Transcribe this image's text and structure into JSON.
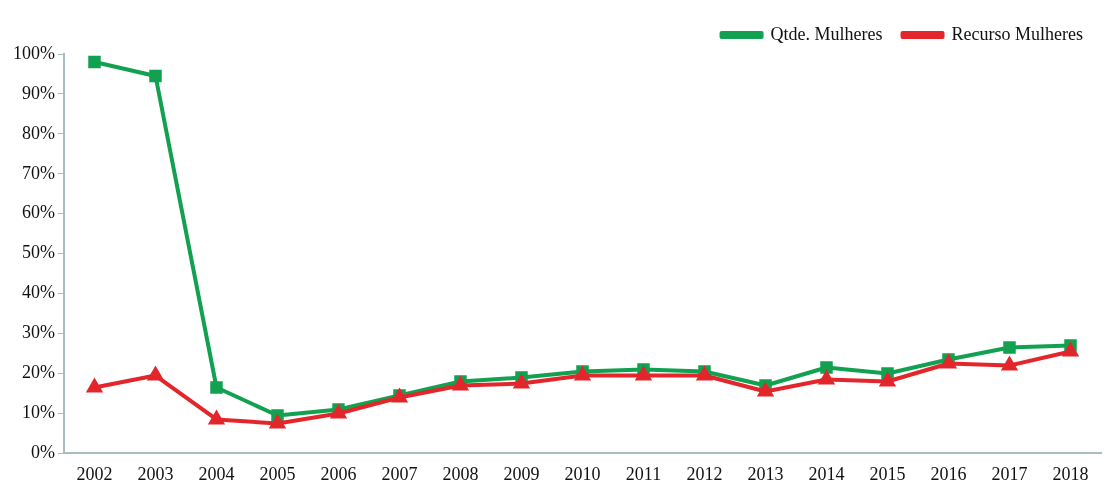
{
  "chart_data": {
    "type": "line",
    "categories": [
      "2002",
      "2003",
      "2004",
      "2005",
      "2006",
      "2007",
      "2008",
      "2009",
      "2010",
      "2011",
      "2012",
      "2013",
      "2014",
      "2015",
      "2016",
      "2017",
      "2018"
    ],
    "series": [
      {
        "name": "Qtde. Mulheres",
        "color": "#12a150",
        "marker": "square",
        "values": [
          98,
          94.5,
          16.5,
          9.5,
          11,
          14.5,
          18,
          19,
          20.5,
          21,
          20.5,
          17,
          21.5,
          20,
          23.5,
          26.5,
          27
        ]
      },
      {
        "name": "Recurso Mulheres",
        "color": "#e3262b",
        "marker": "triangle",
        "values": [
          16.5,
          19.5,
          8.5,
          7.5,
          10,
          14,
          17,
          17.5,
          19.5,
          19.5,
          19.5,
          15.5,
          18.5,
          18,
          22.5,
          22,
          25.5
        ]
      }
    ],
    "ylim": [
      0,
      100
    ],
    "yticks": [
      {
        "value": 0,
        "label": "0%"
      },
      {
        "value": 10,
        "label": "10%"
      },
      {
        "value": 20,
        "label": "20%"
      },
      {
        "value": 30,
        "label": "30%"
      },
      {
        "value": 40,
        "label": "40%"
      },
      {
        "value": 50,
        "label": "50%"
      },
      {
        "value": 60,
        "label": "60%"
      },
      {
        "value": 70,
        "label": "70%"
      },
      {
        "value": 80,
        "label": "80%"
      },
      {
        "value": 90,
        "label": "90%"
      },
      {
        "value": 100,
        "label": "100%"
      }
    ],
    "grid": false,
    "legend": "top right",
    "line_style": "solid"
  }
}
